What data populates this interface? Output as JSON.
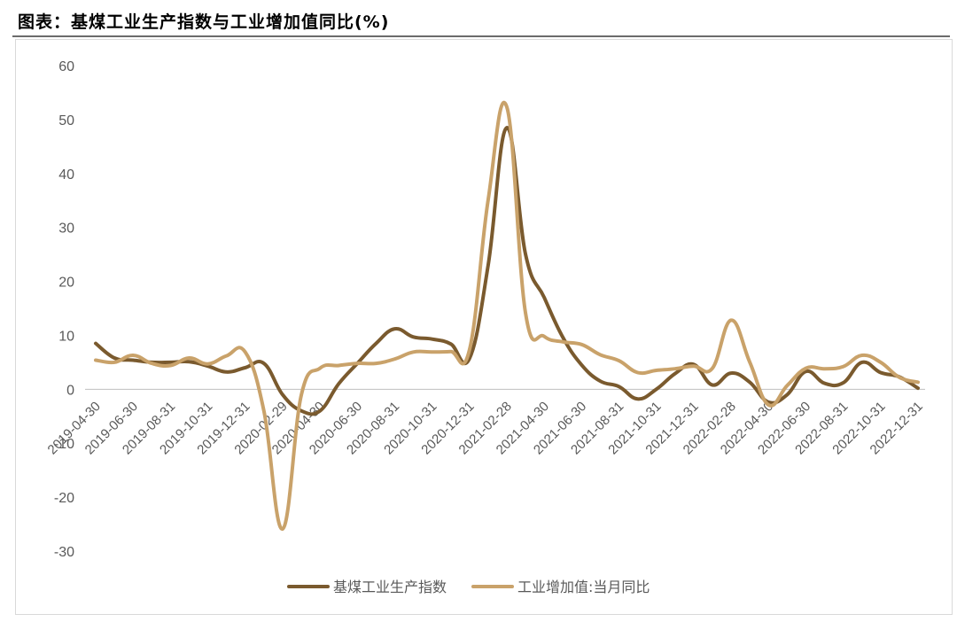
{
  "title": "图表：基煤工业生产指数与工业增加值同比(%)",
  "colors": {
    "series1": "#7a5a2e",
    "series2": "#c9a26a",
    "axis": "#bfbfbf",
    "text": "#595959"
  },
  "chart_data": {
    "type": "line",
    "title": "图表：基煤工业生产指数与工业增加值同比(%)",
    "ylim": [
      -30,
      60
    ],
    "yticks": [
      -30,
      -20,
      -10,
      0,
      10,
      20,
      30,
      40,
      50,
      60
    ],
    "grid": false,
    "legend_position": "bottom",
    "x": [
      "2019-04-30",
      "2019-05-31",
      "2019-06-30",
      "2019-07-31",
      "2019-08-31",
      "2019-09-30",
      "2019-10-31",
      "2019-11-30",
      "2019-12-31",
      "2020-01-31",
      "2020-02-29",
      "2020-03-31",
      "2020-04-30",
      "2020-05-31",
      "2020-06-30",
      "2020-07-31",
      "2020-08-31",
      "2020-09-30",
      "2020-10-31",
      "2020-11-30",
      "2020-12-31",
      "2021-01-31",
      "2021-02-28",
      "2021-03-31",
      "2021-04-30",
      "2021-05-31",
      "2021-06-30",
      "2021-07-31",
      "2021-08-31",
      "2021-09-30",
      "2021-10-31",
      "2021-11-30",
      "2021-12-31",
      "2022-01-31",
      "2022-02-28",
      "2022-03-31",
      "2022-04-30",
      "2022-05-31",
      "2022-06-30",
      "2022-07-31",
      "2022-08-31",
      "2022-09-30",
      "2022-10-31",
      "2022-11-30",
      "2022-12-31"
    ],
    "xtick_labels": [
      "2019-04-30",
      "2019-06-30",
      "2019-08-31",
      "2019-10-31",
      "2019-12-31",
      "2020-02-29",
      "2020-04-30",
      "2020-06-30",
      "2020-08-31",
      "2020-10-31",
      "2020-12-31",
      "2021-02-28",
      "2021-04-30",
      "2021-06-30",
      "2021-08-31",
      "2021-10-31",
      "2021-12-31",
      "2022-02-28",
      "2022-04-30",
      "2022-06-30",
      "2022-08-31",
      "2022-10-31",
      "2022-12-31"
    ],
    "series": [
      {
        "name": "基煤工业生产指数",
        "values": [
          8.5,
          5.8,
          5.4,
          5.0,
          5.0,
          5.1,
          4.3,
          3.2,
          4.0,
          4.8,
          -1.0,
          -4.0,
          -4.0,
          1.0,
          4.8,
          8.5,
          11.2,
          9.7,
          9.3,
          8.4,
          5.7,
          23.0,
          48.5,
          25.0,
          17.0,
          9.6,
          4.5,
          1.5,
          0.5,
          -1.8,
          0.0,
          2.9,
          4.6,
          0.8,
          3.0,
          1.3,
          -2.4,
          -1.0,
          3.3,
          1.1,
          1.2,
          5.0,
          3.1,
          2.3,
          0.2
        ]
      },
      {
        "name": "工业增加值:当月同比",
        "values": [
          5.4,
          5.0,
          6.3,
          4.8,
          4.4,
          5.8,
          4.7,
          6.2,
          6.9,
          -4.0,
          -25.9,
          -1.1,
          3.9,
          4.4,
          4.8,
          4.8,
          5.6,
          6.9,
          6.9,
          7.0,
          7.3,
          35.1,
          52.3,
          14.1,
          9.8,
          8.8,
          8.3,
          6.4,
          5.3,
          3.1,
          3.5,
          3.8,
          4.3,
          3.9,
          12.8,
          5.0,
          -2.9,
          0.7,
          3.9,
          3.8,
          4.2,
          6.3,
          5.0,
          2.2,
          1.3
        ]
      }
    ]
  }
}
